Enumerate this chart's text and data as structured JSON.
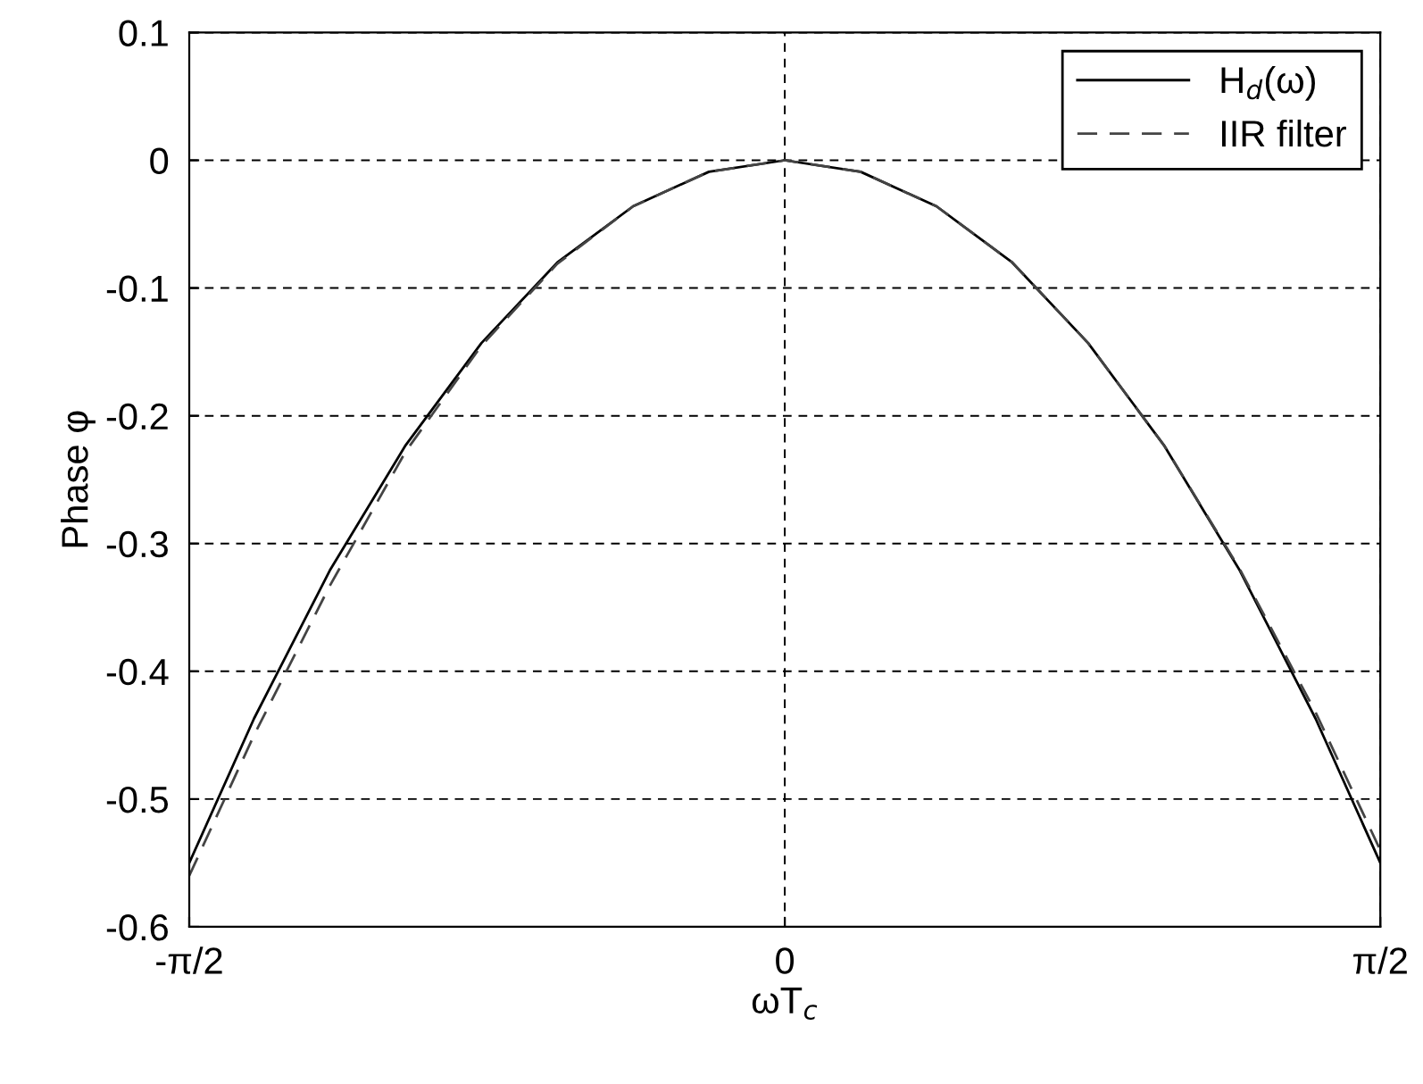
{
  "chart_data": {
    "type": "line",
    "xlabel": "ωT$_{c}$",
    "ylabel": "Phase φ",
    "x": [
      -1.5708,
      -1.4,
      -1.2,
      -1.0,
      -0.8,
      -0.6,
      -0.4,
      -0.2,
      0,
      0.2,
      0.4,
      0.6,
      0.8,
      1.0,
      1.2,
      1.4,
      1.5708
    ],
    "series": [
      {
        "name": "H$_{d}$(ω)",
        "color": "#000000",
        "line_style": "solid",
        "values": [
          -0.55,
          -0.437,
          -0.321,
          -0.223,
          -0.143,
          -0.08,
          -0.036,
          -0.009,
          0,
          -0.009,
          -0.036,
          -0.08,
          -0.143,
          -0.223,
          -0.321,
          -0.437,
          -0.55
        ]
      },
      {
        "name": "IIR filter",
        "color": "#444444",
        "line_style": "dashed",
        "values": [
          -0.56,
          -0.45,
          -0.333,
          -0.228,
          -0.145,
          -0.081,
          -0.036,
          -0.009,
          0,
          -0.009,
          -0.036,
          -0.08,
          -0.143,
          -0.223,
          -0.32,
          -0.432,
          -0.54
        ]
      }
    ],
    "xlim": [
      -1.5708,
      1.5708
    ],
    "xticks": [
      {
        "value": -1.5708,
        "label": "-π/2"
      },
      0,
      {
        "value": 1.5708,
        "label": "π/2"
      }
    ],
    "ylim": [
      -0.6,
      0.1
    ],
    "yticks": [
      -0.6,
      -0.5,
      -0.4,
      -0.3,
      -0.2,
      -0.1,
      0,
      0.1
    ],
    "grid": true,
    "legend": "top right",
    "marker": "none"
  }
}
